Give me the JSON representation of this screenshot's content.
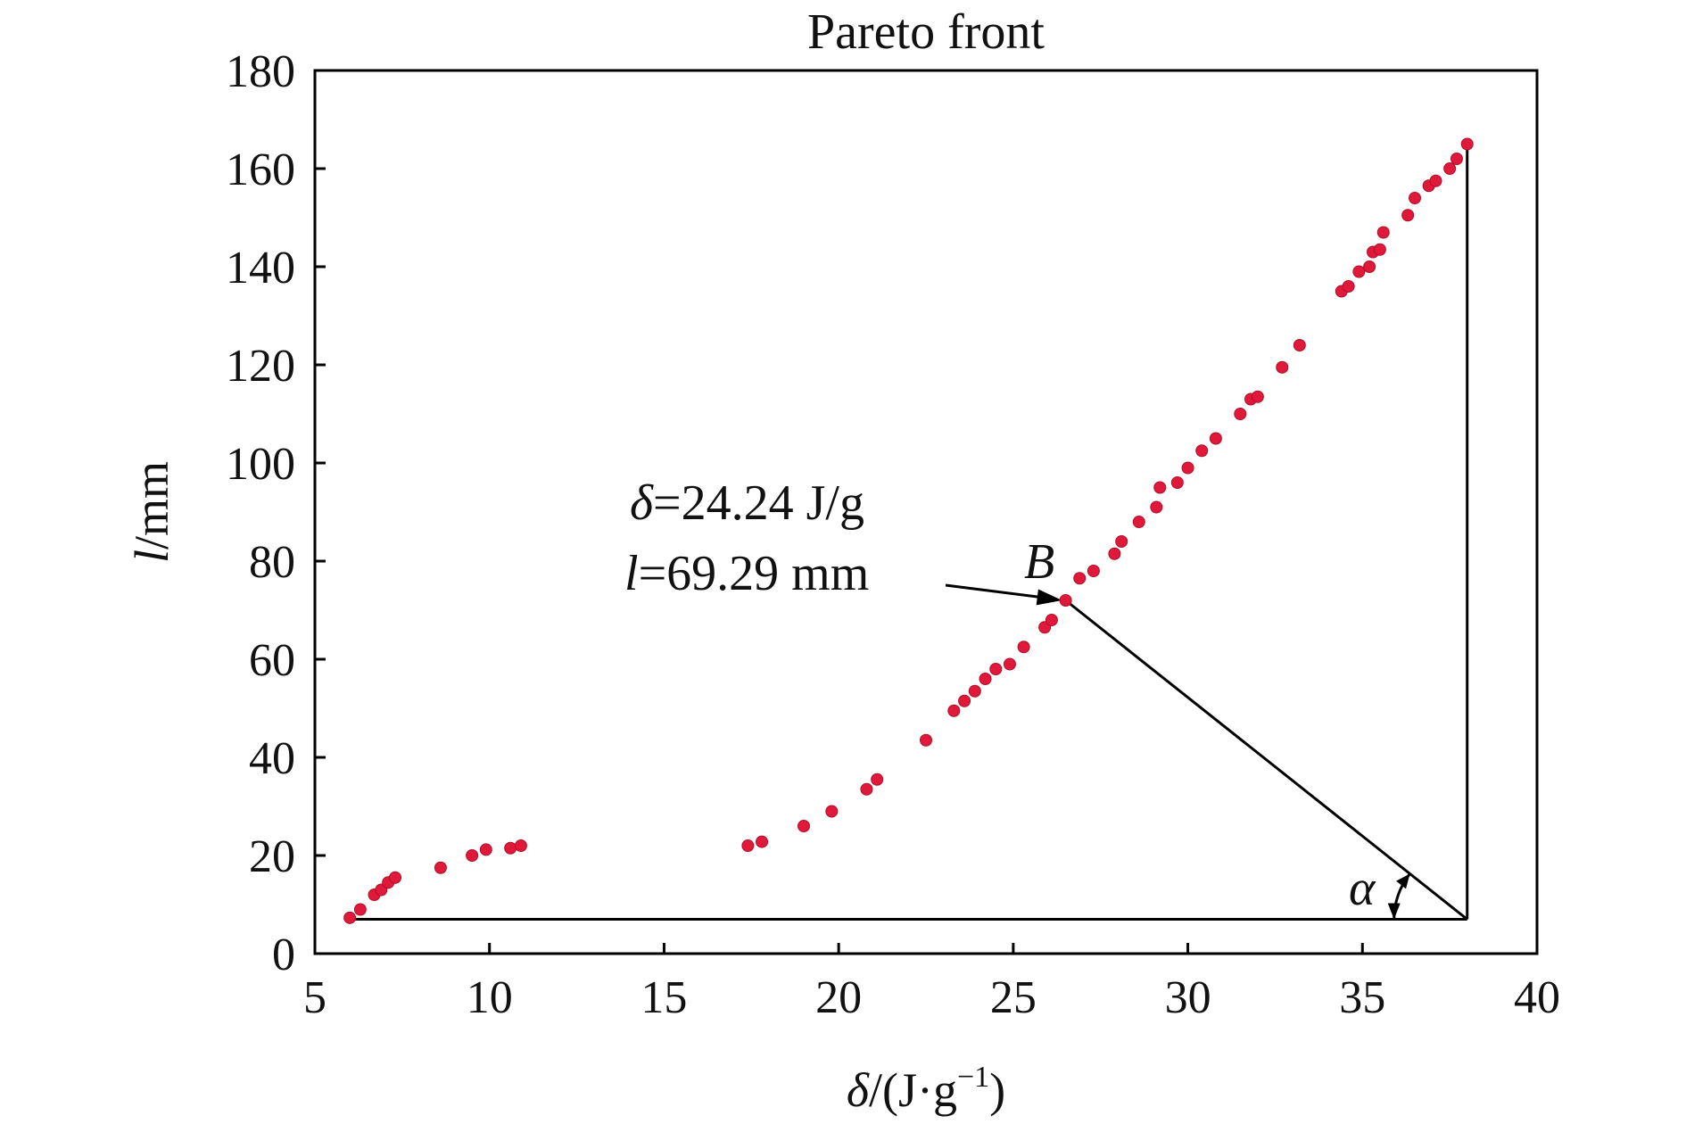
{
  "chart_data": {
    "type": "scatter",
    "title": "Pareto front",
    "xlabel": {
      "symbol": "δ",
      "unit_prefix": "/(J·g",
      "sup": "−1",
      "unit_suffix": ")"
    },
    "ylabel": {
      "symbol": "l",
      "unit": "/mm"
    },
    "xlim": [
      5,
      40
    ],
    "ylim": [
      0,
      180
    ],
    "xticks": [
      "5",
      "10",
      "15",
      "20",
      "25",
      "30",
      "35",
      "40"
    ],
    "yticks": [
      "0",
      "20",
      "40",
      "60",
      "80",
      "100",
      "120",
      "140",
      "160",
      "180"
    ],
    "grid": false,
    "point_color": "#e0193a",
    "points": [
      [
        6.0,
        7.3
      ],
      [
        6.3,
        9.0
      ],
      [
        6.7,
        12.0
      ],
      [
        6.9,
        13.0
      ],
      [
        7.1,
        14.5
      ],
      [
        7.3,
        15.5
      ],
      [
        8.6,
        17.5
      ],
      [
        9.5,
        20.0
      ],
      [
        9.9,
        21.2
      ],
      [
        10.6,
        21.5
      ],
      [
        10.9,
        22.0
      ],
      [
        17.4,
        22.0
      ],
      [
        17.8,
        22.8
      ],
      [
        19.0,
        26.0
      ],
      [
        19.8,
        29.0
      ],
      [
        20.8,
        33.5
      ],
      [
        21.1,
        35.5
      ],
      [
        22.5,
        43.5
      ],
      [
        23.3,
        49.5
      ],
      [
        23.6,
        51.5
      ],
      [
        23.9,
        53.5
      ],
      [
        24.2,
        56.0
      ],
      [
        24.5,
        58.0
      ],
      [
        24.9,
        59.0
      ],
      [
        25.3,
        62.5
      ],
      [
        25.9,
        66.5
      ],
      [
        26.1,
        68.0
      ],
      [
        26.5,
        72.0
      ],
      [
        26.9,
        76.5
      ],
      [
        27.3,
        78.0
      ],
      [
        27.9,
        81.5
      ],
      [
        28.1,
        84.0
      ],
      [
        28.6,
        88.0
      ],
      [
        29.1,
        91.0
      ],
      [
        29.2,
        95.0
      ],
      [
        29.7,
        96.0
      ],
      [
        30.0,
        99.0
      ],
      [
        30.4,
        102.5
      ],
      [
        30.8,
        105.0
      ],
      [
        31.5,
        110.0
      ],
      [
        31.8,
        113.0
      ],
      [
        32.0,
        113.5
      ],
      [
        32.7,
        119.5
      ],
      [
        33.2,
        124.0
      ],
      [
        34.4,
        135.0
      ],
      [
        34.6,
        136.0
      ],
      [
        34.9,
        139.0
      ],
      [
        35.2,
        140.0
      ],
      [
        35.3,
        143.0
      ],
      [
        35.5,
        143.5
      ],
      [
        35.6,
        147.0
      ],
      [
        36.3,
        150.5
      ],
      [
        36.5,
        154.0
      ],
      [
        36.9,
        156.5
      ],
      [
        37.1,
        157.5
      ],
      [
        37.5,
        160.0
      ],
      [
        37.7,
        162.0
      ],
      [
        38.0,
        165.0
      ]
    ],
    "annotation": {
      "line1_symbol": "δ",
      "line1_text": "=24.24 J/g",
      "line2_symbol": "l",
      "line2_text": "=69.29 mm",
      "point_label": "B",
      "angle_label": "α",
      "point_B": [
        26.5,
        72.0
      ],
      "corner": [
        38.0,
        7.0
      ],
      "top": [
        38.0,
        165.0
      ],
      "origin_pt": [
        6.0,
        7.0
      ]
    }
  }
}
